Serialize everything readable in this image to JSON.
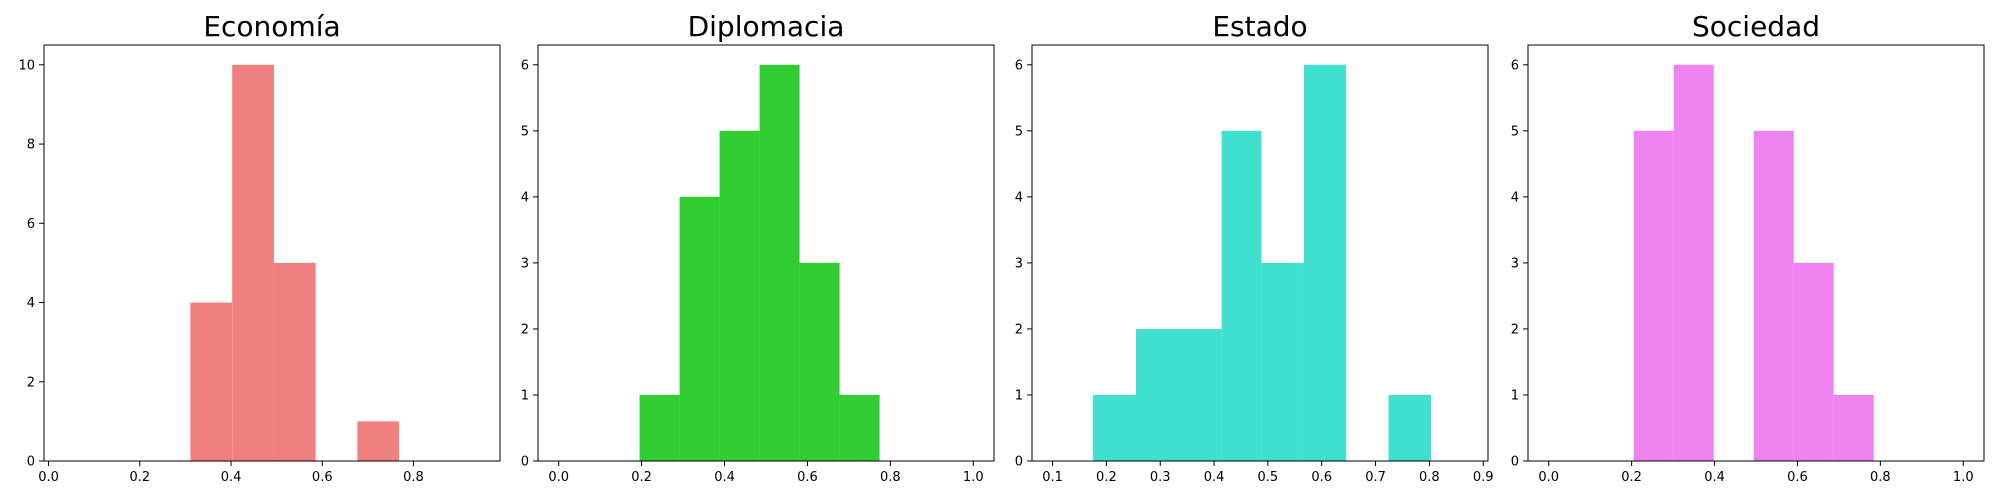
{
  "chart_data": [
    {
      "type": "bar",
      "title": "Economía",
      "color": "#f08080",
      "xlim": [
        -0.01,
        0.9896
      ],
      "ylim": [
        0,
        10.5
      ],
      "xticks": [
        "0.0",
        "0.2",
        "0.4",
        "0.6",
        "0.8"
      ],
      "xtick_values": [
        0.0,
        0.2,
        0.4,
        0.6,
        0.8
      ],
      "yticks": [
        "0",
        "2",
        "4",
        "6",
        "8",
        "10"
      ],
      "ytick_values": [
        0,
        2,
        4,
        6,
        8,
        10
      ],
      "bin_edges": [
        0.311,
        0.4025,
        0.494,
        0.5855,
        0.677,
        0.7685
      ],
      "values": [
        4,
        10,
        5,
        0,
        1
      ],
      "xlabel": "",
      "ylabel": ""
    },
    {
      "type": "bar",
      "title": "Diplomacia",
      "color": "#32cd32",
      "xlim": [
        -0.05,
        1.05
      ],
      "ylim": [
        0,
        6.3
      ],
      "xticks": [
        "0.0",
        "0.2",
        "0.4",
        "0.6",
        "0.8",
        "1.0"
      ],
      "xtick_values": [
        0.0,
        0.2,
        0.4,
        0.6,
        0.8,
        1.0
      ],
      "yticks": [
        "0",
        "1",
        "2",
        "3",
        "4",
        "5",
        "6"
      ],
      "ytick_values": [
        0,
        1,
        2,
        3,
        4,
        5,
        6
      ],
      "bin_edges": [
        0.195,
        0.2915,
        0.388,
        0.4845,
        0.581,
        0.6775,
        0.774
      ],
      "values": [
        1,
        4,
        5,
        6,
        3,
        1
      ],
      "xlabel": "",
      "ylabel": ""
    },
    {
      "type": "bar",
      "title": "Estado",
      "color": "#40e0d0",
      "xlim": [
        0.0618,
        0.9089
      ],
      "ylim": [
        0,
        6.3
      ],
      "xticks": [
        "0.1",
        "0.2",
        "0.3",
        "0.4",
        "0.5",
        "0.6",
        "0.7",
        "0.8",
        "0.9"
      ],
      "xtick_values": [
        0.1,
        0.2,
        0.3,
        0.4,
        0.5,
        0.6,
        0.7,
        0.8,
        0.9
      ],
      "yticks": [
        "0",
        "1",
        "2",
        "3",
        "4",
        "5",
        "6"
      ],
      "ytick_values": [
        0,
        1,
        2,
        3,
        4,
        5,
        6
      ],
      "bin_edges": [
        0.175,
        0.255,
        0.334,
        0.414,
        0.488,
        0.567,
        0.645,
        0.724,
        0.803
      ],
      "values": [
        1,
        2,
        2,
        5,
        3,
        6,
        0,
        1
      ],
      "xlabel": "",
      "ylabel": ""
    },
    {
      "type": "bar",
      "title": "Sociedad",
      "color": "#ee82ee",
      "xlim": [
        -0.05,
        1.05
      ],
      "ylim": [
        0,
        6.3
      ],
      "xticks": [
        "0.0",
        "0.2",
        "0.4",
        "0.6",
        "0.8",
        "1.0"
      ],
      "xtick_values": [
        0.0,
        0.2,
        0.4,
        0.6,
        0.8,
        1.0
      ],
      "yticks": [
        "0",
        "1",
        "2",
        "3",
        "4",
        "5",
        "6"
      ],
      "ytick_values": [
        0,
        1,
        2,
        3,
        4,
        5,
        6
      ],
      "bin_edges": [
        0.205,
        0.3015,
        0.398,
        0.4945,
        0.591,
        0.6875,
        0.784
      ],
      "values": [
        5,
        6,
        0,
        5,
        3,
        1
      ],
      "xlabel": "",
      "ylabel": ""
    }
  ]
}
